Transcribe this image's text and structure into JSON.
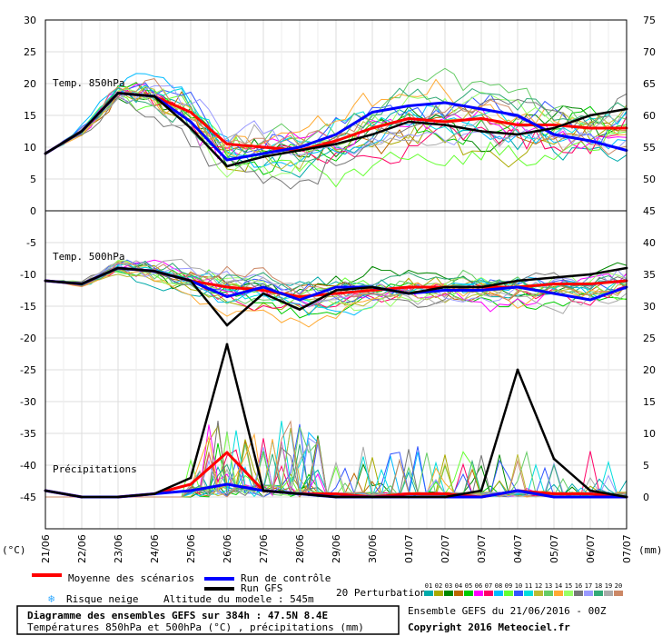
{
  "title": "Diagramme des ensembles GEFS sur 384h : 47.5N 8.4E",
  "subtitle": "Températures 850hPa et 500hPa (°C) , précipitations (mm)",
  "run_info": "Ensemble GEFS du 21/06/2016 - 00Z",
  "copyright": "Copyright 2016 Meteociel.fr",
  "altitude": "Altitude du modele : 545m",
  "panel_labels": {
    "t850": "Temp. 850hPa",
    "t500": "Temp. 500hPa",
    "precip": "Précipitations"
  },
  "unit_left": "(°C)",
  "unit_right": "(mm)",
  "legend": {
    "mean": "Moyenne des scénarios",
    "control": "Run de contrôle",
    "gfs": "Run GFS",
    "snow": "Risque neige",
    "perturbations": "20 Perturbations",
    "perturbation_codes": [
      "01",
      "02",
      "03",
      "04",
      "05",
      "06",
      "07",
      "08",
      "09",
      "10",
      "11",
      "12",
      "13",
      "14",
      "15",
      "16",
      "17",
      "18",
      "19",
      "20"
    ]
  },
  "colors": {
    "mean": "#ff0000",
    "control": "#0000ff",
    "gfs": "#000000",
    "snow": "#33aaff",
    "perturbations": [
      "#00aaaa",
      "#aaaa00",
      "#008800",
      "#bb6600",
      "#00cc00",
      "#ff00ff",
      "#ff0066",
      "#00bbff",
      "#66ff33",
      "#3355ff",
      "#00dddd",
      "#bbbb33",
      "#66cc66",
      "#ffaa33",
      "#99ff66",
      "#777777",
      "#9999ff",
      "#33aa77",
      "#aaaaaa",
      "#cc8866"
    ]
  },
  "chart_data": [
    {
      "type": "line",
      "title": "Temp. 850hPa",
      "x": [
        "21/06",
        "22/06",
        "23/06",
        "24/06",
        "25/06",
        "26/06",
        "27/06",
        "28/06",
        "29/06",
        "30/06",
        "01/07",
        "02/07",
        "03/07",
        "04/07",
        "05/07",
        "06/07",
        "07/07"
      ],
      "ylabel": "(°C)",
      "ylim": [
        0,
        30
      ],
      "series": [
        {
          "name": "Moyenne des scénarios",
          "values": [
            9,
            12.5,
            18.5,
            18,
            15.5,
            10.5,
            10,
            9.5,
            11,
            13,
            14.5,
            14,
            14.5,
            13.5,
            13.5,
            13,
            13
          ]
        },
        {
          "name": "Run de contrôle",
          "values": [
            9,
            12.5,
            18.5,
            18,
            14,
            8,
            9,
            10,
            12,
            15.5,
            16.5,
            17,
            16,
            15,
            12,
            11,
            9.5
          ]
        },
        {
          "name": "Run GFS",
          "values": [
            9,
            12.5,
            18.5,
            18,
            13,
            7,
            8.5,
            9.5,
            10.5,
            12,
            14,
            13.5,
            12.5,
            12,
            13,
            15,
            16
          ]
        }
      ]
    },
    {
      "type": "line",
      "title": "Temp. 500hPa",
      "x": [
        "21/06",
        "22/06",
        "23/06",
        "24/06",
        "25/06",
        "26/06",
        "27/06",
        "28/06",
        "29/06",
        "30/06",
        "01/07",
        "02/07",
        "03/07",
        "04/07",
        "05/07",
        "06/07",
        "07/07"
      ],
      "ylabel": "(°C)",
      "ylim": [
        -45,
        0
      ],
      "series": [
        {
          "name": "Moyenne des scénarios",
          "values": [
            -11,
            -11.5,
            -9,
            -9.5,
            -11,
            -12,
            -12.5,
            -13.5,
            -13,
            -12.5,
            -12,
            -12,
            -12,
            -12,
            -11.5,
            -11.5,
            -11
          ]
        },
        {
          "name": "Run de contrôle",
          "values": [
            -11,
            -11.5,
            -9,
            -9.5,
            -11,
            -13.5,
            -12,
            -14,
            -12,
            -12,
            -13,
            -12.5,
            -12.5,
            -12,
            -13,
            -14,
            -12
          ]
        },
        {
          "name": "Run GFS",
          "values": [
            -11,
            -11.5,
            -9,
            -9.5,
            -11,
            -18,
            -13,
            -15.5,
            -12.5,
            -12,
            -13,
            -12,
            -12,
            -11,
            -10.5,
            -10,
            -9
          ]
        }
      ]
    },
    {
      "type": "line",
      "title": "Précipitations",
      "x": [
        "21/06",
        "22/06",
        "23/06",
        "24/06",
        "25/06",
        "26/06",
        "27/06",
        "28/06",
        "29/06",
        "30/06",
        "01/07",
        "02/07",
        "03/07",
        "04/07",
        "05/07",
        "06/07",
        "07/07"
      ],
      "ylabel": "(mm)",
      "ylim": [
        0,
        75
      ],
      "series": [
        {
          "name": "Moyenne des scénarios",
          "values": [
            1,
            0,
            0,
            0.5,
            2,
            7,
            1,
            0.5,
            0.5,
            0,
            0.5,
            0.5,
            0,
            1,
            0.5,
            0.5,
            0
          ]
        },
        {
          "name": "Run de contrôle",
          "values": [
            1,
            0,
            0,
            0.5,
            1,
            2,
            1,
            0.5,
            0,
            0,
            0,
            0,
            0,
            1,
            0,
            0,
            0
          ]
        },
        {
          "name": "Run GFS",
          "values": [
            1,
            0,
            0,
            0.5,
            3,
            24,
            1,
            0.5,
            0,
            0,
            0,
            0,
            1,
            20,
            6,
            1,
            0
          ]
        }
      ]
    }
  ]
}
